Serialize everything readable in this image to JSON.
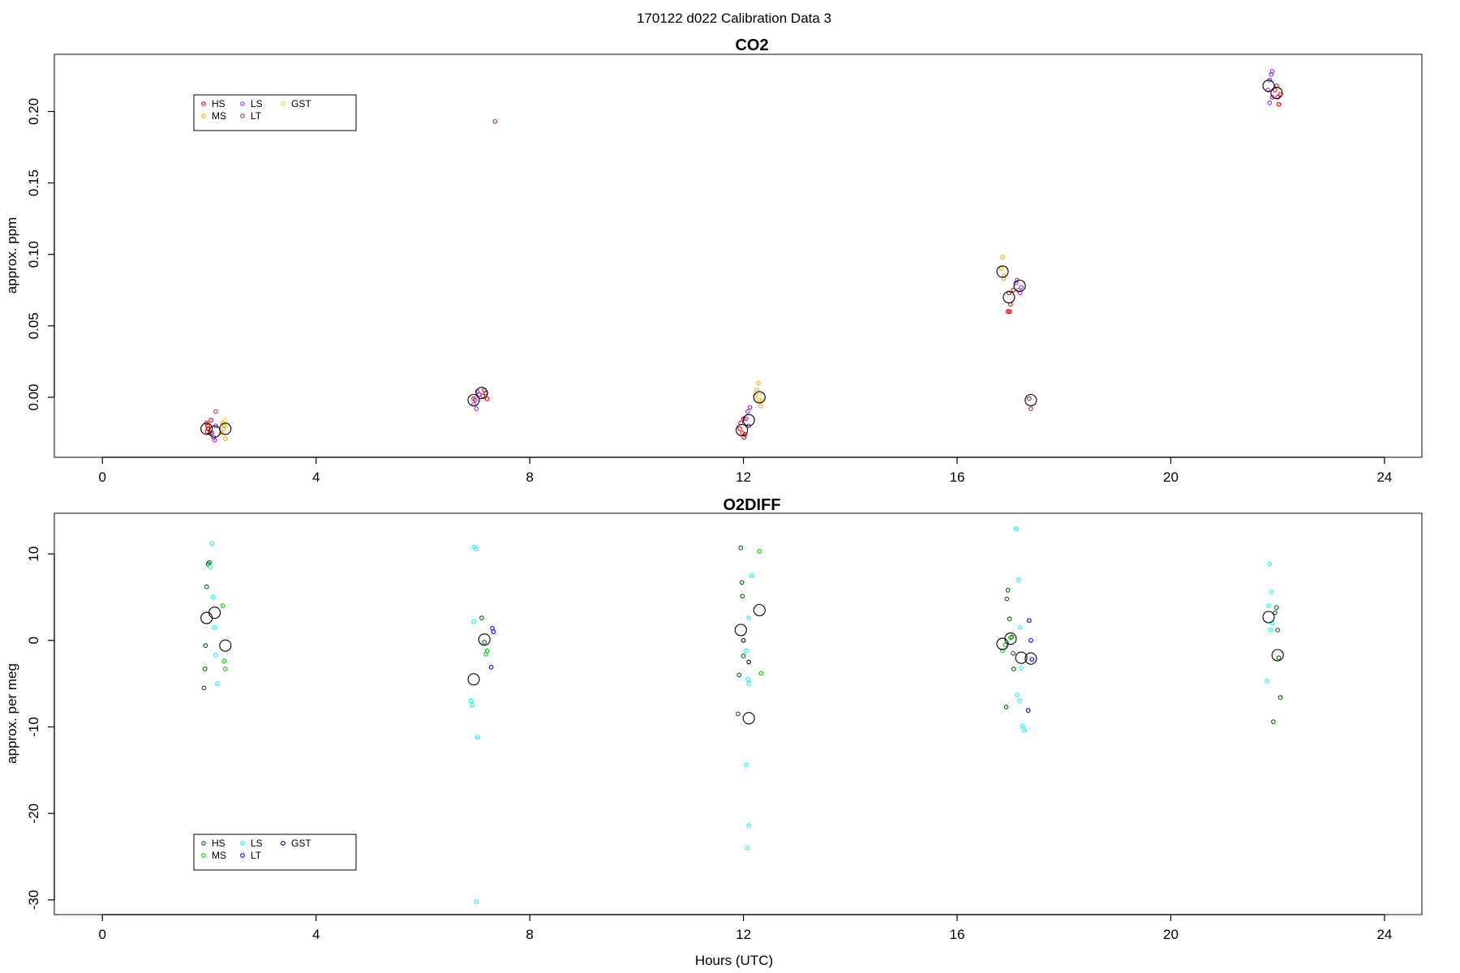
{
  "figure_title": "170122   d022   Calibration Data 3",
  "xlabel": "Hours (UTC)",
  "chart_data": [
    {
      "type": "scatter",
      "title": "CO2",
      "ylabel": "approx. ppm",
      "xlim": [
        -0.9,
        24.7
      ],
      "ylim": [
        -0.042,
        0.24
      ],
      "xticks": [
        0,
        4,
        8,
        12,
        16,
        20,
        24
      ],
      "yticks": [
        0.0,
        0.05,
        0.1,
        0.15,
        0.2
      ],
      "ytick_labels": [
        "0.00",
        "0.05",
        "0.10",
        "0.15",
        "0.20"
      ],
      "legend": {
        "placement": "top-left",
        "entries": [
          {
            "label": "HS",
            "color": "#ff0000"
          },
          {
            "label": "MS",
            "color": "#ffa500"
          },
          {
            "label": "LS",
            "color": "#a020f0"
          },
          {
            "label": "LT",
            "color": "#b03060"
          },
          {
            "label": "GST",
            "color": "#ffd700"
          }
        ]
      },
      "series": [
        {
          "name": "HS",
          "color": "#ff0000",
          "marker": "small",
          "points": [
            [
              1.95,
              -0.018
            ],
            [
              1.98,
              -0.022
            ],
            [
              2.02,
              -0.025
            ],
            [
              1.97,
              -0.02
            ],
            [
              2.03,
              -0.016
            ],
            [
              1.96,
              -0.024
            ],
            [
              6.95,
              -0.001
            ],
            [
              7.15,
              0.005
            ],
            [
              7.12,
              0.001
            ],
            [
              7.18,
              0.003
            ],
            [
              7.2,
              -0.001
            ],
            [
              11.95,
              -0.018
            ],
            [
              11.98,
              -0.025
            ],
            [
              12.0,
              -0.015
            ],
            [
              11.93,
              -0.022
            ],
            [
              12.03,
              -0.026
            ],
            [
              12.01,
              -0.028
            ],
            [
              16.95,
              0.06
            ],
            [
              16.98,
              0.06
            ],
            [
              17.0,
              0.065
            ],
            [
              16.97,
              0.073
            ],
            [
              17.05,
              0.075
            ],
            [
              21.95,
              0.215
            ],
            [
              22.0,
              0.21
            ],
            [
              22.02,
              0.205
            ],
            [
              21.98,
              0.218
            ],
            [
              22.05,
              0.212
            ]
          ]
        },
        {
          "name": "MS",
          "color": "#ffa500",
          "marker": "small",
          "points": [
            [
              2.25,
              -0.018
            ],
            [
              2.27,
              -0.022
            ],
            [
              2.3,
              -0.029
            ],
            [
              2.22,
              -0.025
            ],
            [
              2.28,
              -0.02
            ],
            [
              12.25,
              0.005
            ],
            [
              12.28,
              0.01
            ],
            [
              12.3,
              -0.002
            ],
            [
              12.32,
              -0.006
            ],
            [
              12.22,
              0.001
            ],
            [
              16.85,
              0.098
            ],
            [
              16.87,
              0.083
            ],
            [
              16.83,
              0.09
            ],
            [
              16.88,
              0.085
            ]
          ]
        },
        {
          "name": "LS",
          "color": "#a020f0",
          "marker": "small",
          "points": [
            [
              2.05,
              -0.025
            ],
            [
              2.08,
              -0.028
            ],
            [
              2.12,
              -0.02
            ],
            [
              2.1,
              -0.03
            ],
            [
              6.95,
              -0.005
            ],
            [
              7.0,
              -0.008
            ],
            [
              7.02,
              0.004
            ],
            [
              7.05,
              0.002
            ],
            [
              6.98,
              -0.002
            ],
            [
              12.08,
              -0.01
            ],
            [
              12.12,
              -0.007
            ],
            [
              12.05,
              -0.015
            ],
            [
              12.1,
              -0.02
            ],
            [
              17.1,
              0.08
            ],
            [
              17.15,
              0.075
            ],
            [
              17.12,
              0.082
            ],
            [
              17.2,
              0.077
            ],
            [
              17.18,
              0.073
            ],
            [
              21.85,
              0.222
            ],
            [
              21.88,
              0.226
            ],
            [
              21.82,
              0.215
            ],
            [
              21.9,
              0.228
            ],
            [
              21.9,
              0.21
            ],
            [
              21.85,
              0.206
            ]
          ]
        },
        {
          "name": "LT",
          "color": "#b03060",
          "marker": "small",
          "points": [
            [
              2.12,
              -0.01
            ],
            [
              7.35,
              0.193
            ],
            [
              17.38,
              -0.008
            ],
            [
              17.35,
              -0.001
            ]
          ]
        },
        {
          "name": "GST",
          "color": "#ffd700",
          "marker": "small",
          "points": [
            [
              2.3,
              -0.016
            ],
            [
              12.35,
              -0.002
            ],
            [
              12.3,
              0.003
            ]
          ]
        },
        {
          "name": "",
          "color": "#000000",
          "marker": "large",
          "points": [
            [
              1.95,
              -0.022
            ],
            [
              2.1,
              -0.024
            ],
            [
              2.3,
              -0.022
            ],
            [
              6.95,
              -0.002
            ],
            [
              7.1,
              0.003
            ],
            [
              11.97,
              -0.023
            ],
            [
              12.1,
              -0.016
            ],
            [
              12.3,
              0.0
            ],
            [
              16.85,
              0.088
            ],
            [
              16.97,
              0.07
            ],
            [
              17.17,
              0.078
            ],
            [
              17.38,
              -0.002
            ],
            [
              21.83,
              0.218
            ],
            [
              21.98,
              0.213
            ]
          ]
        }
      ]
    },
    {
      "type": "scatter",
      "title": "O2DIFF",
      "ylabel": "approx. per meg",
      "xlim": [
        -0.9,
        24.7
      ],
      "ylim": [
        -31.7,
        14.7
      ],
      "xticks": [
        0,
        4,
        8,
        12,
        16,
        20,
        24
      ],
      "yticks": [
        -30,
        -20,
        -10,
        0,
        10
      ],
      "ytick_labels": [
        "-30",
        "-20",
        "-10",
        "0",
        "10"
      ],
      "legend": {
        "placement": "bottom-left",
        "entries": [
          {
            "label": "HS",
            "color": "#006400"
          },
          {
            "label": "MS",
            "color": "#00cd00"
          },
          {
            "label": "LS",
            "color": "#00ffff"
          },
          {
            "label": "LT",
            "color": "#0000ff"
          },
          {
            "label": "GST",
            "color": "#00008b"
          }
        ]
      },
      "series": [
        {
          "name": "HS",
          "color": "#006400",
          "marker": "small",
          "points": [
            [
              1.95,
              6.2
            ],
            [
              1.98,
              8.8
            ],
            [
              2.0,
              9.0
            ],
            [
              1.93,
              -0.6
            ],
            [
              1.9,
              -5.5
            ],
            [
              1.92,
              -3.3
            ],
            [
              7.1,
              2.6
            ],
            [
              7.15,
              -0.2
            ],
            [
              11.95,
              10.7
            ],
            [
              11.97,
              6.7
            ],
            [
              11.98,
              5.1
            ],
            [
              11.92,
              -4.0
            ],
            [
              11.9,
              -8.5
            ],
            [
              12.0,
              -1.8
            ],
            [
              16.95,
              5.8
            ],
            [
              16.98,
              2.5
            ],
            [
              16.93,
              4.8
            ],
            [
              17.02,
              0.4
            ],
            [
              17.05,
              -1.5
            ],
            [
              16.92,
              -7.7
            ],
            [
              17.06,
              -3.3
            ],
            [
              21.98,
              3.8
            ],
            [
              21.95,
              3.2
            ],
            [
              22.0,
              1.2
            ],
            [
              22.02,
              -2.0
            ],
            [
              22.05,
              -6.6
            ],
            [
              21.92,
              -9.4
            ]
          ]
        },
        {
          "name": "MS",
          "color": "#00cd00",
          "marker": "small",
          "points": [
            [
              2.25,
              4.0
            ],
            [
              2.28,
              -2.4
            ],
            [
              2.3,
              -3.3
            ],
            [
              7.2,
              -1.2
            ],
            [
              7.18,
              -1.6
            ],
            [
              12.3,
              10.3
            ],
            [
              12.33,
              -3.8
            ],
            [
              16.85,
              -1.2
            ],
            [
              16.9,
              -0.5
            ],
            [
              17.0,
              0.3
            ]
          ]
        },
        {
          "name": "LS",
          "color": "#00ffff",
          "marker": "small",
          "points": [
            [
              2.05,
              11.2
            ],
            [
              2.02,
              8.5
            ],
            [
              2.07,
              5.0
            ],
            [
              2.1,
              1.5
            ],
            [
              2.12,
              -1.7
            ],
            [
              2.15,
              -5.0
            ],
            [
              6.95,
              10.8
            ],
            [
              7.0,
              10.6
            ],
            [
              6.95,
              2.2
            ],
            [
              6.9,
              -7.0
            ],
            [
              6.92,
              -7.5
            ],
            [
              7.02,
              -11.2
            ],
            [
              7.0,
              -30.2
            ],
            [
              12.15,
              7.5
            ],
            [
              12.1,
              2.6
            ],
            [
              12.05,
              -1.2
            ],
            [
              12.08,
              -4.5
            ],
            [
              12.1,
              -5.0
            ],
            [
              12.05,
              -14.4
            ],
            [
              12.1,
              -21.4
            ],
            [
              12.07,
              -24.0
            ],
            [
              17.1,
              12.9
            ],
            [
              17.15,
              7.0
            ],
            [
              17.18,
              1.5
            ],
            [
              17.12,
              -6.3
            ],
            [
              17.17,
              -7.0
            ],
            [
              17.2,
              -3.2
            ],
            [
              17.22,
              -9.9
            ],
            [
              17.25,
              -10.4
            ],
            [
              21.85,
              8.8
            ],
            [
              21.88,
              5.6
            ],
            [
              21.83,
              4.0
            ],
            [
              21.9,
              2.0
            ],
            [
              21.87,
              1.2
            ],
            [
              21.8,
              -4.7
            ]
          ]
        },
        {
          "name": "LT",
          "color": "#0000ff",
          "marker": "small",
          "points": [
            [
              7.3,
              1.4
            ],
            [
              7.32,
              1.0
            ],
            [
              7.28,
              -3.1
            ],
            [
              17.35,
              2.3
            ],
            [
              17.38,
              0.0
            ],
            [
              17.33,
              -8.1
            ],
            [
              17.4,
              -2.2
            ]
          ]
        },
        {
          "name": "GST",
          "color": "#00008b",
          "marker": "small",
          "points": [
            [
              12.0,
              0.0
            ],
            [
              12.1,
              -2.5
            ]
          ]
        },
        {
          "name": "",
          "color": "#000000",
          "marker": "large",
          "points": [
            [
              1.95,
              2.6
            ],
            [
              2.1,
              3.2
            ],
            [
              2.3,
              -0.6
            ],
            [
              6.95,
              -4.5
            ],
            [
              7.15,
              0.1
            ],
            [
              11.95,
              1.2
            ],
            [
              12.1,
              -9.0
            ],
            [
              12.3,
              3.5
            ],
            [
              16.85,
              -0.4
            ],
            [
              17.0,
              0.2
            ],
            [
              17.2,
              -2.0
            ],
            [
              17.38,
              -2.1
            ],
            [
              21.83,
              2.7
            ],
            [
              22.0,
              -1.7
            ]
          ]
        }
      ]
    }
  ]
}
